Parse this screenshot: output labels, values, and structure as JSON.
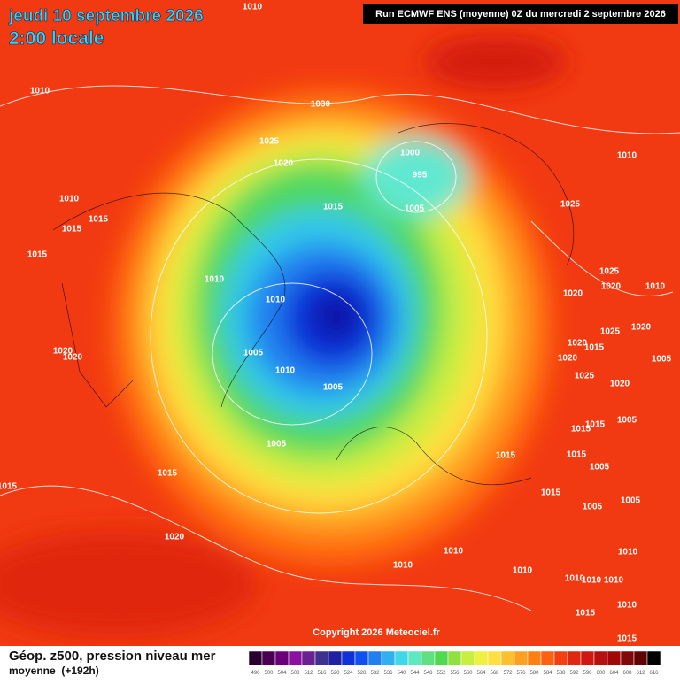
{
  "header": {
    "valid_time": "jeudi 10 septembre 2026",
    "local_time": "2:00 locale",
    "run": "Run ECMWF ENS (moyenne) 0Z du mercredi 2 septembre 2026"
  },
  "map": {
    "isobar_labels": [
      "1010",
      "1010",
      "1030",
      "1025",
      "1020",
      "1000",
      "995",
      "1010",
      "1010",
      "1015",
      "1015",
      "1015",
      "1005",
      "1025",
      "1015",
      "1010",
      "1025",
      "1020",
      "1010",
      "1020",
      "1010",
      "1020",
      "1015",
      "1025",
      "1020",
      "1020",
      "1020",
      "1005",
      "1020",
      "1005",
      "1010",
      "1025",
      "1005",
      "1020",
      "1005",
      "1015",
      "1015",
      "1005",
      "1015",
      "1015",
      "1005",
      "1015",
      "1015",
      "1015",
      "1005",
      "1005",
      "1020",
      "1010",
      "1010",
      "1010",
      "1010",
      "1010",
      "1010",
      "1010",
      "1010",
      "1015",
      "1015"
    ],
    "copyright": "Copyright 2026 Meteociel.fr"
  },
  "footer": {
    "field": "Géop. z500, pression niveau mer",
    "mode": "moyenne  (+192h)",
    "scale": [
      496,
      500,
      504,
      508,
      512,
      516,
      520,
      524,
      528,
      532,
      536,
      540,
      544,
      548,
      552,
      556,
      560,
      564,
      568,
      572,
      576,
      580,
      584,
      588,
      592,
      596,
      600,
      604,
      608,
      612,
      616
    ]
  }
}
